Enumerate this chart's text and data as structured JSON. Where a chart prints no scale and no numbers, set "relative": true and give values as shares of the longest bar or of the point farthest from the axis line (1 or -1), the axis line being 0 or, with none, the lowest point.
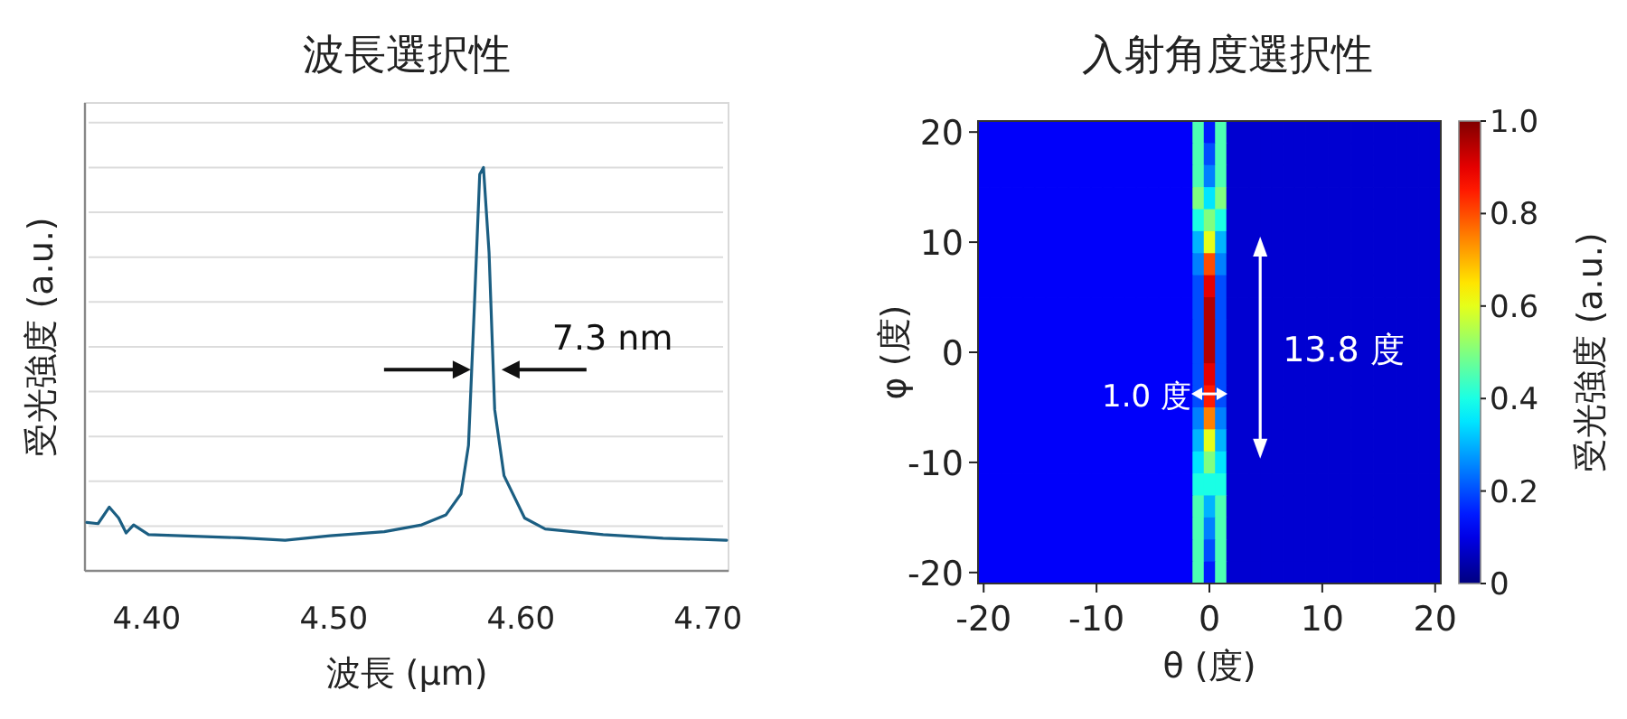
{
  "chart_data": [
    {
      "type": "line",
      "title": "波長選択性",
      "xlabel": "波長 (μm)",
      "ylabel": "受光強度 (a.u.)",
      "relative": true,
      "tick_labels": "x",
      "grid": "y",
      "xlim": [
        4.367,
        4.711
      ],
      "xticks": [
        {
          "value": 4.4,
          "label": "4.40"
        },
        {
          "value": 4.5,
          "label": "4.50"
        },
        {
          "value": 4.6,
          "label": "4.60"
        },
        {
          "value": 4.7,
          "label": "4.70"
        }
      ],
      "x": [
        4.368,
        4.374,
        4.38,
        4.385,
        4.389,
        4.393,
        4.401,
        4.418,
        4.45,
        4.474,
        4.498,
        4.527,
        4.547,
        4.56,
        4.568,
        4.572,
        4.575,
        4.578,
        4.58,
        4.583,
        4.586,
        4.591,
        4.602,
        4.613,
        4.644,
        4.676,
        4.71
      ],
      "series": [
        {
          "color": "#1b5e82",
          "values": [
            0.12,
            0.117,
            0.158,
            0.131,
            0.094,
            0.114,
            0.09,
            0.087,
            0.082,
            0.076,
            0.087,
            0.097,
            0.114,
            0.139,
            0.191,
            0.311,
            0.64,
            0.983,
            1,
            0.789,
            0.4,
            0.236,
            0.131,
            0.104,
            0.09,
            0.081,
            0.076
          ]
        }
      ],
      "annotations": [
        "7.3 nm"
      ]
    },
    {
      "type": "heatmap",
      "title": "入射角度選択性",
      "xlabel": "θ (度)",
      "ylabel": "φ (度)",
      "clabel": "受光強度 (a.u.)",
      "categories": [
        "-20",
        null,
        null,
        null,
        null,
        null,
        null,
        null,
        null,
        null,
        "-10",
        null,
        null,
        null,
        null,
        null,
        null,
        null,
        null,
        null,
        "0",
        null,
        null,
        null,
        null,
        null,
        null,
        null,
        null,
        null,
        "10",
        null,
        null,
        null,
        null,
        null,
        null,
        null,
        null,
        null,
        "20"
      ],
      "y_categories": [
        "20",
        null,
        null,
        null,
        null,
        "10",
        null,
        null,
        null,
        null,
        "0",
        null,
        null,
        null,
        null,
        "-10",
        null,
        null,
        null,
        null,
        "-20"
      ],
      "clim": [
        0,
        1
      ],
      "cticks": [
        0,
        0.2,
        0.4,
        0.6,
        0.8,
        {
          "value": 1,
          "label": "1.0"
        }
      ],
      "cells": [
        [
          0.12,
          0.12,
          0.12,
          0.12,
          0.12,
          0.12,
          0.12,
          0.12,
          0.12,
          0.12,
          0.12,
          0.12,
          0.12,
          0.12,
          0.12,
          0.12,
          0.12,
          0.12,
          0.12,
          0.45,
          0.15,
          0.45,
          0.08,
          0.08,
          0.08,
          0.08,
          0.08,
          0.08,
          0.08,
          0.08,
          0.08,
          0.08,
          0.08,
          0.08,
          0.08,
          0.08,
          0.08,
          0.08,
          0.08,
          0.08,
          0.08
        ],
        [
          0.12,
          0.12,
          0.12,
          0.12,
          0.12,
          0.12,
          0.12,
          0.12,
          0.12,
          0.12,
          0.12,
          0.12,
          0.12,
          0.12,
          0.12,
          0.12,
          0.12,
          0.12,
          0.12,
          0.45,
          0.2,
          0.45,
          0.08,
          0.08,
          0.08,
          0.08,
          0.08,
          0.08,
          0.08,
          0.08,
          0.08,
          0.08,
          0.08,
          0.08,
          0.08,
          0.08,
          0.08,
          0.08,
          0.08,
          0.08,
          0.08
        ],
        [
          0.12,
          0.12,
          0.12,
          0.12,
          0.12,
          0.12,
          0.12,
          0.12,
          0.12,
          0.12,
          0.12,
          0.12,
          0.12,
          0.12,
          0.12,
          0.12,
          0.12,
          0.12,
          0.12,
          0.45,
          0.25,
          0.45,
          0.08,
          0.08,
          0.08,
          0.08,
          0.08,
          0.08,
          0.08,
          0.08,
          0.08,
          0.08,
          0.08,
          0.08,
          0.08,
          0.08,
          0.08,
          0.08,
          0.08,
          0.08,
          0.08
        ],
        [
          0.12,
          0.12,
          0.12,
          0.12,
          0.12,
          0.12,
          0.12,
          0.12,
          0.12,
          0.12,
          0.12,
          0.12,
          0.12,
          0.12,
          0.12,
          0.12,
          0.12,
          0.12,
          0.12,
          0.5,
          0.35,
          0.5,
          0.08,
          0.08,
          0.08,
          0.08,
          0.08,
          0.08,
          0.08,
          0.08,
          0.08,
          0.08,
          0.08,
          0.08,
          0.08,
          0.08,
          0.08,
          0.08,
          0.08,
          0.08,
          0.08
        ],
        [
          0.12,
          0.12,
          0.12,
          0.12,
          0.12,
          0.12,
          0.12,
          0.12,
          0.12,
          0.12,
          0.12,
          0.12,
          0.12,
          0.12,
          0.12,
          0.12,
          0.12,
          0.12,
          0.12,
          0.4,
          0.5,
          0.4,
          0.08,
          0.08,
          0.08,
          0.08,
          0.08,
          0.08,
          0.08,
          0.08,
          0.08,
          0.08,
          0.08,
          0.08,
          0.08,
          0.08,
          0.08,
          0.08,
          0.08,
          0.08,
          0.08
        ],
        [
          0.12,
          0.12,
          0.12,
          0.12,
          0.12,
          0.12,
          0.12,
          0.12,
          0.12,
          0.12,
          0.12,
          0.12,
          0.12,
          0.12,
          0.12,
          0.12,
          0.12,
          0.12,
          0.12,
          0.3,
          0.6,
          0.3,
          0.08,
          0.08,
          0.08,
          0.08,
          0.08,
          0.08,
          0.08,
          0.08,
          0.08,
          0.08,
          0.08,
          0.08,
          0.08,
          0.08,
          0.08,
          0.08,
          0.08,
          0.08,
          0.08
        ],
        [
          0.12,
          0.12,
          0.12,
          0.12,
          0.12,
          0.12,
          0.12,
          0.12,
          0.12,
          0.12,
          0.12,
          0.12,
          0.12,
          0.12,
          0.12,
          0.12,
          0.12,
          0.12,
          0.12,
          0.25,
          0.8,
          0.25,
          0.08,
          0.08,
          0.08,
          0.08,
          0.08,
          0.08,
          0.08,
          0.08,
          0.08,
          0.08,
          0.08,
          0.08,
          0.08,
          0.08,
          0.08,
          0.08,
          0.08,
          0.08,
          0.08
        ],
        [
          0.12,
          0.12,
          0.12,
          0.12,
          0.12,
          0.12,
          0.12,
          0.12,
          0.12,
          0.12,
          0.12,
          0.12,
          0.12,
          0.12,
          0.12,
          0.12,
          0.12,
          0.12,
          0.12,
          0.2,
          0.9,
          0.2,
          0.08,
          0.08,
          0.08,
          0.08,
          0.08,
          0.08,
          0.08,
          0.08,
          0.08,
          0.08,
          0.08,
          0.08,
          0.08,
          0.08,
          0.08,
          0.08,
          0.08,
          0.08,
          0.08
        ],
        [
          0.12,
          0.12,
          0.12,
          0.12,
          0.12,
          0.12,
          0.12,
          0.12,
          0.12,
          0.12,
          0.12,
          0.12,
          0.12,
          0.12,
          0.12,
          0.12,
          0.12,
          0.12,
          0.12,
          0.2,
          0.95,
          0.2,
          0.08,
          0.08,
          0.08,
          0.08,
          0.08,
          0.08,
          0.08,
          0.08,
          0.08,
          0.08,
          0.08,
          0.08,
          0.08,
          0.08,
          0.08,
          0.08,
          0.08,
          0.08,
          0.08
        ],
        [
          0.12,
          0.12,
          0.12,
          0.12,
          0.12,
          0.12,
          0.12,
          0.12,
          0.12,
          0.12,
          0.12,
          0.12,
          0.12,
          0.12,
          0.12,
          0.12,
          0.12,
          0.12,
          0.12,
          0.2,
          0.95,
          0.2,
          0.08,
          0.08,
          0.08,
          0.08,
          0.08,
          0.08,
          0.08,
          0.08,
          0.08,
          0.08,
          0.08,
          0.08,
          0.08,
          0.08,
          0.08,
          0.08,
          0.08,
          0.08,
          0.08
        ],
        [
          0.12,
          0.12,
          0.12,
          0.12,
          0.12,
          0.12,
          0.12,
          0.12,
          0.12,
          0.12,
          0.12,
          0.12,
          0.12,
          0.12,
          0.12,
          0.12,
          0.12,
          0.12,
          0.12,
          0.2,
          0.95,
          0.2,
          0.08,
          0.08,
          0.08,
          0.08,
          0.08,
          0.08,
          0.08,
          0.08,
          0.08,
          0.08,
          0.08,
          0.08,
          0.08,
          0.08,
          0.08,
          0.08,
          0.08,
          0.08,
          0.08
        ],
        [
          0.12,
          0.12,
          0.12,
          0.12,
          0.12,
          0.12,
          0.12,
          0.12,
          0.12,
          0.12,
          0.12,
          0.12,
          0.12,
          0.12,
          0.12,
          0.12,
          0.12,
          0.12,
          0.12,
          0.2,
          0.9,
          0.2,
          0.08,
          0.08,
          0.08,
          0.08,
          0.08,
          0.08,
          0.08,
          0.08,
          0.08,
          0.08,
          0.08,
          0.08,
          0.08,
          0.08,
          0.08,
          0.08,
          0.08,
          0.08,
          0.08
        ],
        [
          0.12,
          0.12,
          0.12,
          0.12,
          0.12,
          0.12,
          0.12,
          0.12,
          0.12,
          0.12,
          0.12,
          0.12,
          0.12,
          0.12,
          0.12,
          0.12,
          0.12,
          0.12,
          0.12,
          0.2,
          0.85,
          0.2,
          0.08,
          0.08,
          0.08,
          0.08,
          0.08,
          0.08,
          0.08,
          0.08,
          0.08,
          0.08,
          0.08,
          0.08,
          0.08,
          0.08,
          0.08,
          0.08,
          0.08,
          0.08,
          0.08
        ],
        [
          0.12,
          0.12,
          0.12,
          0.12,
          0.12,
          0.12,
          0.12,
          0.12,
          0.12,
          0.12,
          0.12,
          0.12,
          0.12,
          0.12,
          0.12,
          0.12,
          0.12,
          0.12,
          0.12,
          0.25,
          0.75,
          0.25,
          0.08,
          0.08,
          0.08,
          0.08,
          0.08,
          0.08,
          0.08,
          0.08,
          0.08,
          0.08,
          0.08,
          0.08,
          0.08,
          0.08,
          0.08,
          0.08,
          0.08,
          0.08,
          0.08
        ],
        [
          0.12,
          0.12,
          0.12,
          0.12,
          0.12,
          0.12,
          0.12,
          0.12,
          0.12,
          0.12,
          0.12,
          0.12,
          0.12,
          0.12,
          0.12,
          0.12,
          0.12,
          0.12,
          0.12,
          0.3,
          0.6,
          0.3,
          0.08,
          0.08,
          0.08,
          0.08,
          0.08,
          0.08,
          0.08,
          0.08,
          0.08,
          0.08,
          0.08,
          0.08,
          0.08,
          0.08,
          0.08,
          0.08,
          0.08,
          0.08,
          0.08
        ],
        [
          0.12,
          0.12,
          0.12,
          0.12,
          0.12,
          0.12,
          0.12,
          0.12,
          0.12,
          0.12,
          0.12,
          0.12,
          0.12,
          0.12,
          0.12,
          0.12,
          0.12,
          0.12,
          0.12,
          0.35,
          0.5,
          0.35,
          0.08,
          0.08,
          0.08,
          0.08,
          0.08,
          0.08,
          0.08,
          0.08,
          0.08,
          0.08,
          0.08,
          0.08,
          0.08,
          0.08,
          0.08,
          0.08,
          0.08,
          0.08,
          0.08
        ],
        [
          0.12,
          0.12,
          0.12,
          0.12,
          0.12,
          0.12,
          0.12,
          0.12,
          0.12,
          0.12,
          0.12,
          0.12,
          0.12,
          0.12,
          0.12,
          0.12,
          0.12,
          0.12,
          0.12,
          0.4,
          0.4,
          0.4,
          0.08,
          0.08,
          0.08,
          0.08,
          0.08,
          0.08,
          0.08,
          0.08,
          0.08,
          0.08,
          0.08,
          0.08,
          0.08,
          0.08,
          0.08,
          0.08,
          0.08,
          0.08,
          0.08
        ],
        [
          0.12,
          0.12,
          0.12,
          0.12,
          0.12,
          0.12,
          0.12,
          0.12,
          0.12,
          0.12,
          0.12,
          0.12,
          0.12,
          0.12,
          0.12,
          0.12,
          0.12,
          0.12,
          0.12,
          0.45,
          0.3,
          0.45,
          0.08,
          0.08,
          0.08,
          0.08,
          0.08,
          0.08,
          0.08,
          0.08,
          0.08,
          0.08,
          0.08,
          0.08,
          0.08,
          0.08,
          0.08,
          0.08,
          0.08,
          0.08,
          0.08
        ],
        [
          0.12,
          0.12,
          0.12,
          0.12,
          0.12,
          0.12,
          0.12,
          0.12,
          0.12,
          0.12,
          0.12,
          0.12,
          0.12,
          0.12,
          0.12,
          0.12,
          0.12,
          0.12,
          0.12,
          0.45,
          0.25,
          0.45,
          0.08,
          0.08,
          0.08,
          0.08,
          0.08,
          0.08,
          0.08,
          0.08,
          0.08,
          0.08,
          0.08,
          0.08,
          0.08,
          0.08,
          0.08,
          0.08,
          0.08,
          0.08,
          0.08
        ],
        [
          0.12,
          0.12,
          0.12,
          0.12,
          0.12,
          0.12,
          0.12,
          0.12,
          0.12,
          0.12,
          0.12,
          0.12,
          0.12,
          0.12,
          0.12,
          0.12,
          0.12,
          0.12,
          0.12,
          0.45,
          0.2,
          0.45,
          0.08,
          0.08,
          0.08,
          0.08,
          0.08,
          0.08,
          0.08,
          0.08,
          0.08,
          0.08,
          0.08,
          0.08,
          0.08,
          0.08,
          0.08,
          0.08,
          0.08,
          0.08,
          0.08
        ],
        [
          0.12,
          0.12,
          0.12,
          0.12,
          0.12,
          0.12,
          0.12,
          0.12,
          0.12,
          0.12,
          0.12,
          0.12,
          0.12,
          0.12,
          0.12,
          0.12,
          0.12,
          0.12,
          0.12,
          0.45,
          0.15,
          0.45,
          0.08,
          0.08,
          0.08,
          0.08,
          0.08,
          0.08,
          0.08,
          0.08,
          0.08,
          0.08,
          0.08,
          0.08,
          0.08,
          0.08,
          0.08,
          0.08,
          0.08,
          0.08,
          0.08
        ]
      ],
      "annotations": [
        "1.0 度",
        "13.8 度"
      ]
    }
  ]
}
